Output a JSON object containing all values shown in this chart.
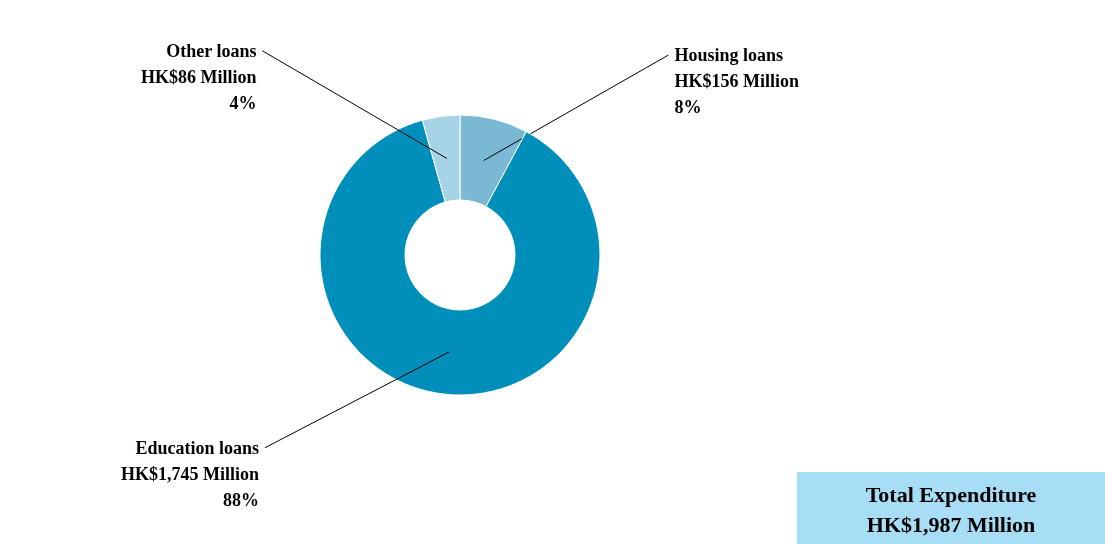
{
  "chart_data": {
    "type": "donut",
    "categories": [
      "Housing loans",
      "Education loans",
      "Other loans"
    ],
    "values": [
      156,
      1745,
      86
    ],
    "colors": [
      "#7ab8d4",
      "#008fbb",
      "#a6d3e6"
    ],
    "value_labels": [
      "HK$156 Million\n8%",
      "HK$1,745 Million\n88%",
      "HK$86 Million\n4%"
    ],
    "annotations": [
      "Total Expenditure\nHK$1,987 Million"
    ]
  }
}
